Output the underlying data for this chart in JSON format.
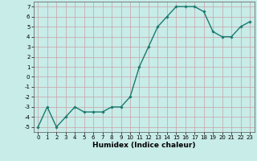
{
  "x": [
    0,
    1,
    2,
    3,
    4,
    5,
    6,
    7,
    8,
    9,
    10,
    11,
    12,
    13,
    14,
    15,
    16,
    17,
    18,
    19,
    20,
    21,
    22,
    23
  ],
  "y": [
    -5,
    -3,
    -5,
    -4,
    -3,
    -3.5,
    -3.5,
    -3.5,
    -3,
    -3,
    -2,
    1,
    3,
    5,
    6,
    7,
    7,
    7,
    6.5,
    4.5,
    4,
    4,
    5,
    5.5
  ],
  "line_color": "#1a7a6e",
  "marker": "D",
  "marker_size": 1.8,
  "bg_color": "#c8ece8",
  "grid_color": "#c8a0a8",
  "xlabel": "Humidex (Indice chaleur)",
  "xlabel_fontsize": 6.5,
  "ylim": [
    -5.5,
    7.5
  ],
  "xlim": [
    -0.5,
    23.5
  ],
  "yticks": [
    -5,
    -4,
    -3,
    -2,
    -1,
    0,
    1,
    2,
    3,
    4,
    5,
    6,
    7
  ],
  "xticks": [
    0,
    1,
    2,
    3,
    4,
    5,
    6,
    7,
    8,
    9,
    10,
    11,
    12,
    13,
    14,
    15,
    16,
    17,
    18,
    19,
    20,
    21,
    22,
    23
  ],
  "tick_fontsize": 5.0,
  "linewidth": 1.0
}
